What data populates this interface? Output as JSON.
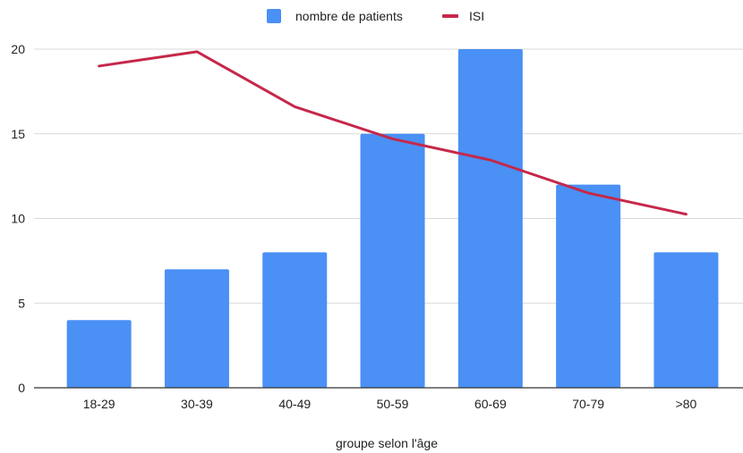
{
  "chart_data": {
    "type": "bar",
    "categories": [
      "18-29",
      "30-39",
      "40-49",
      "50-59",
      "60-69",
      "70-79",
      ">80"
    ],
    "series": [
      {
        "name": "nombre de patients",
        "kind": "bar",
        "color": "#4a90f5",
        "values": [
          4,
          7,
          8,
          15,
          20,
          12,
          8
        ]
      },
      {
        "name": "ISI",
        "kind": "line",
        "color": "#c5284a",
        "values": [
          19.0,
          19.85,
          16.6,
          14.7,
          13.45,
          11.5,
          10.25
        ]
      }
    ],
    "title": "",
    "xlabel": "groupe selon l'âge",
    "ylabel": "",
    "ylim": [
      0,
      20
    ],
    "yticks": [
      0,
      5,
      10,
      15,
      20
    ],
    "grid": true,
    "legend_position": "top-center"
  }
}
